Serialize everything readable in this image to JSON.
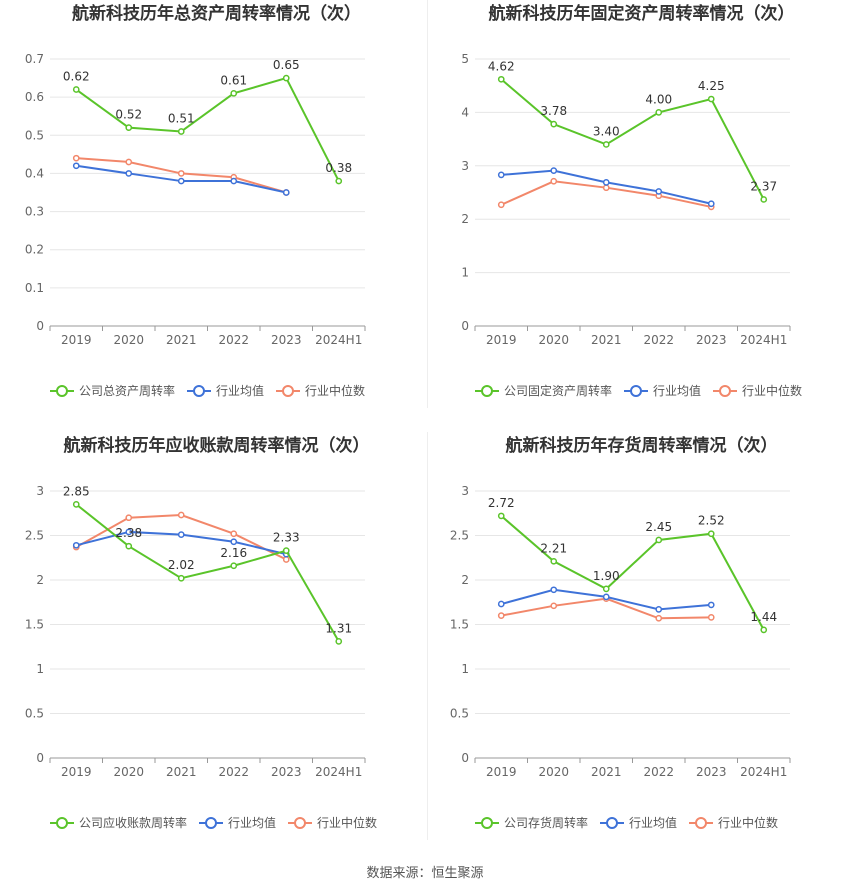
{
  "source_label": "数据来源：恒生聚源",
  "colors": {
    "company": "#5ac42a",
    "avg": "#3e72d8",
    "median": "#f2876a",
    "grid": "#e6e6e6",
    "axis": "#999999"
  },
  "chart_data": [
    {
      "type": "line",
      "title": "航新科技历年总资产周转率情况（次）",
      "categories": [
        "2019",
        "2020",
        "2021",
        "2022",
        "2023",
        "2024H1"
      ],
      "ylim": [
        0,
        0.7
      ],
      "yticks": [
        "0",
        "0.1",
        "0.2",
        "0.3",
        "0.4",
        "0.5",
        "0.6",
        "0.7"
      ],
      "grid": true,
      "legend_position": "bottom",
      "series": [
        {
          "name": "公司总资产周转率",
          "role": "company",
          "values": [
            0.62,
            0.52,
            0.51,
            0.61,
            0.65,
            0.38
          ],
          "labels": [
            "0.62",
            "0.52",
            "0.51",
            "0.61",
            "0.65",
            "0.38"
          ]
        },
        {
          "name": "行业均值",
          "role": "avg",
          "values": [
            0.42,
            0.4,
            0.38,
            0.38,
            0.35,
            null
          ]
        },
        {
          "name": "行业中位数",
          "role": "median",
          "values": [
            0.44,
            0.43,
            0.4,
            0.39,
            0.35,
            null
          ]
        }
      ]
    },
    {
      "type": "line",
      "title": "航新科技历年固定资产周转率情况（次）",
      "categories": [
        "2019",
        "2020",
        "2021",
        "2022",
        "2023",
        "2024H1"
      ],
      "ylim": [
        0,
        5
      ],
      "yticks": [
        "0",
        "1",
        "2",
        "3",
        "4",
        "5"
      ],
      "grid": true,
      "legend_position": "bottom",
      "series": [
        {
          "name": "公司固定资产周转率",
          "role": "company",
          "values": [
            4.62,
            3.78,
            3.4,
            4.0,
            4.25,
            2.37
          ],
          "labels": [
            "4.62",
            "3.78",
            "3.40",
            "4.00",
            "4.25",
            "2.37"
          ]
        },
        {
          "name": "行业均值",
          "role": "avg",
          "values": [
            2.83,
            2.91,
            2.69,
            2.52,
            2.29,
            null
          ]
        },
        {
          "name": "行业中位数",
          "role": "median",
          "values": [
            2.27,
            2.71,
            2.59,
            2.44,
            2.23,
            null
          ]
        }
      ]
    },
    {
      "type": "line",
      "title": "航新科技历年应收账款周转率情况（次）",
      "categories": [
        "2019",
        "2020",
        "2021",
        "2022",
        "2023",
        "2024H1"
      ],
      "ylim": [
        0,
        3
      ],
      "yticks": [
        "0",
        "0.5",
        "1",
        "1.5",
        "2",
        "2.5",
        "3"
      ],
      "grid": true,
      "legend_position": "bottom",
      "series": [
        {
          "name": "公司应收账款周转率",
          "role": "company",
          "values": [
            2.85,
            2.38,
            2.02,
            2.16,
            2.33,
            1.31
          ],
          "labels": [
            "2.85",
            "2.38",
            "2.02",
            "2.16",
            "2.33",
            "1.31"
          ]
        },
        {
          "name": "行业均值",
          "role": "avg",
          "values": [
            2.39,
            2.54,
            2.51,
            2.43,
            2.29,
            null
          ]
        },
        {
          "name": "行业中位数",
          "role": "median",
          "values": [
            2.37,
            2.7,
            2.73,
            2.52,
            2.23,
            null
          ]
        }
      ]
    },
    {
      "type": "line",
      "title": "航新科技历年存货周转率情况（次）",
      "categories": [
        "2019",
        "2020",
        "2021",
        "2022",
        "2023",
        "2024H1"
      ],
      "ylim": [
        0,
        3
      ],
      "yticks": [
        "0",
        "0.5",
        "1",
        "1.5",
        "2",
        "2.5",
        "3"
      ],
      "grid": true,
      "legend_position": "bottom",
      "series": [
        {
          "name": "公司存货周转率",
          "role": "company",
          "values": [
            2.72,
            2.21,
            1.9,
            2.45,
            2.52,
            1.44
          ],
          "labels": [
            "2.72",
            "2.21",
            "1.90",
            "2.45",
            "2.52",
            "1.44"
          ]
        },
        {
          "name": "行业均值",
          "role": "avg",
          "values": [
            1.73,
            1.89,
            1.81,
            1.67,
            1.72,
            null
          ]
        },
        {
          "name": "行业中位数",
          "role": "median",
          "values": [
            1.6,
            1.71,
            1.79,
            1.57,
            1.58,
            null
          ]
        }
      ]
    }
  ]
}
